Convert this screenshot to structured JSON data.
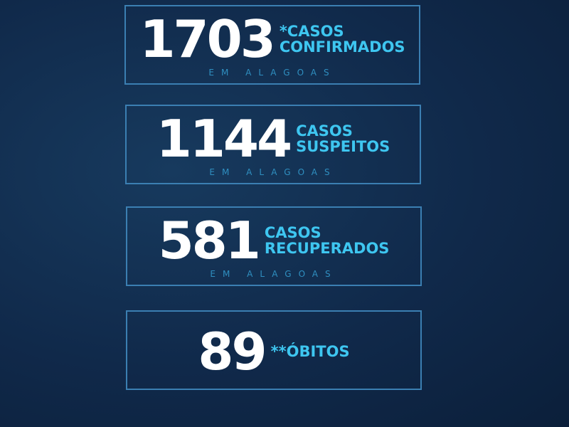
{
  "cards": [
    {
      "number": "1703",
      "label_line1": "*CASOS",
      "label_line2": "CONFIRMADOS",
      "subtitle": "EM ALAGOAS"
    },
    {
      "number": "1144",
      "label_line1": "CASOS",
      "label_line2": "SUSPEITOS",
      "subtitle": "EM ALAGOAS"
    },
    {
      "number": "581",
      "label_line1": "CASOS",
      "label_line2": "RECUPERADOS",
      "subtitle": "EM ALAGOAS"
    },
    {
      "number": "89",
      "label_line1": "**ÓBITOS",
      "label_line2": "",
      "subtitle": ""
    }
  ],
  "colors": {
    "background": "#10294a",
    "border": "#3b7fb2",
    "accent": "#3ec6f0",
    "number": "#ffffff"
  }
}
